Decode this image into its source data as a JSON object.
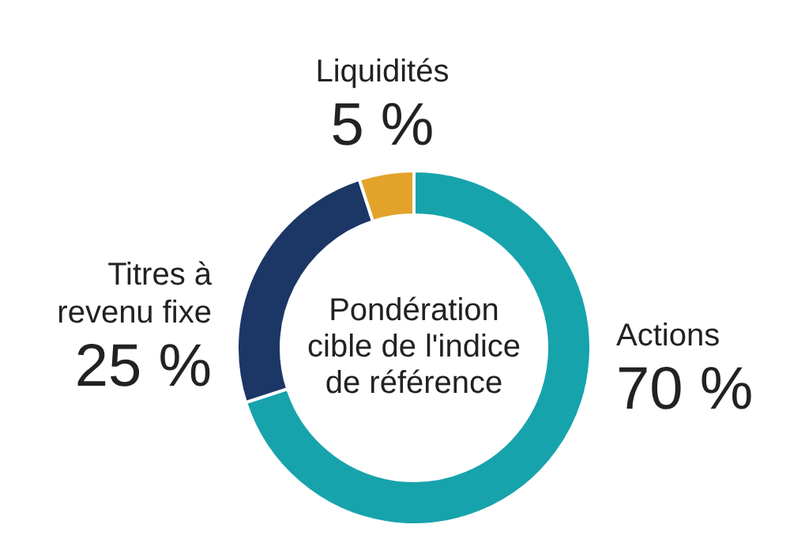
{
  "chart_data": {
    "type": "donut",
    "title": "Pondération cible de l'indice de référence",
    "categories": [
      "Actions",
      "Titres à revenu fixe",
      "Liquidités"
    ],
    "values": [
      70,
      25,
      5
    ],
    "colors": [
      "#17a3ac",
      "#1c3765",
      "#e3a32b"
    ],
    "value_labels": [
      "70 %",
      "25 %",
      "5 %"
    ],
    "legend": false
  }
}
